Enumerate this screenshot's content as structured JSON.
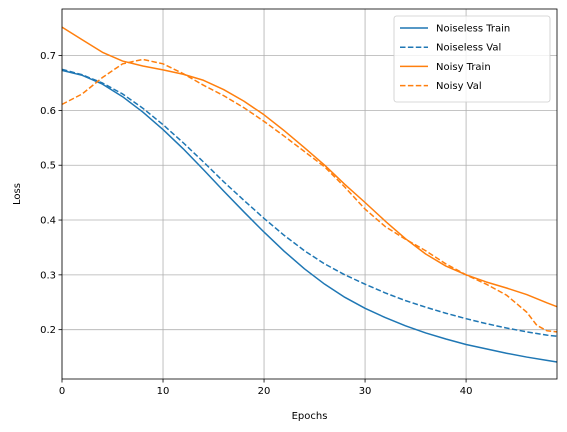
{
  "chart_data": {
    "type": "line",
    "xlabel": "Epochs",
    "ylabel": "Loss",
    "xlim": [
      0,
      49
    ],
    "ylim": [
      0.11,
      0.785
    ],
    "xticks": [
      0,
      10,
      20,
      30,
      40
    ],
    "yticks": [
      0.2,
      0.3,
      0.4,
      0.5,
      0.6,
      0.7
    ],
    "grid": true,
    "legend_position": "top-right",
    "series": [
      {
        "name": "Noiseless Train",
        "color": "#1f77b4",
        "style": "solid",
        "x": [
          0,
          2,
          4,
          6,
          8,
          10,
          12,
          14,
          16,
          18,
          20,
          22,
          24,
          26,
          28,
          30,
          32,
          34,
          36,
          38,
          40,
          42,
          44,
          46,
          48,
          49
        ],
        "y": [
          0.673,
          0.664,
          0.648,
          0.625,
          0.597,
          0.565,
          0.53,
          0.492,
          0.453,
          0.415,
          0.378,
          0.343,
          0.311,
          0.283,
          0.259,
          0.239,
          0.222,
          0.207,
          0.194,
          0.183,
          0.173,
          0.165,
          0.157,
          0.15,
          0.144,
          0.141
        ]
      },
      {
        "name": "Noiseless Val",
        "color": "#1f77b4",
        "style": "dashed",
        "x": [
          0,
          2,
          4,
          6,
          8,
          10,
          12,
          14,
          16,
          18,
          20,
          22,
          24,
          26,
          28,
          30,
          32,
          34,
          36,
          38,
          40,
          42,
          44,
          46,
          48,
          49
        ],
        "y": [
          0.675,
          0.665,
          0.65,
          0.63,
          0.604,
          0.574,
          0.541,
          0.506,
          0.47,
          0.436,
          0.403,
          0.372,
          0.344,
          0.32,
          0.3,
          0.283,
          0.267,
          0.253,
          0.241,
          0.23,
          0.22,
          0.211,
          0.203,
          0.196,
          0.19,
          0.188
        ]
      },
      {
        "name": "Noisy Train",
        "color": "#ff7f0e",
        "style": "solid",
        "x": [
          0,
          2,
          4,
          6,
          8,
          10,
          12,
          14,
          16,
          18,
          20,
          22,
          24,
          26,
          28,
          30,
          32,
          34,
          36,
          38,
          40,
          42,
          44,
          46,
          48,
          49
        ],
        "y": [
          0.752,
          0.729,
          0.706,
          0.69,
          0.681,
          0.674,
          0.666,
          0.655,
          0.638,
          0.617,
          0.592,
          0.563,
          0.532,
          0.5,
          0.465,
          0.432,
          0.398,
          0.366,
          0.338,
          0.316,
          0.3,
          0.287,
          0.276,
          0.264,
          0.249,
          0.242
        ]
      },
      {
        "name": "Noisy Val",
        "color": "#ff7f0e",
        "style": "dashed",
        "x": [
          0,
          2,
          4,
          6,
          8,
          10,
          12,
          14,
          16,
          18,
          20,
          22,
          24,
          26,
          28,
          30,
          32,
          34,
          36,
          38,
          40,
          42,
          44,
          46,
          47,
          48,
          49
        ],
        "y": [
          0.611,
          0.63,
          0.66,
          0.685,
          0.693,
          0.685,
          0.667,
          0.646,
          0.627,
          0.605,
          0.58,
          0.553,
          0.525,
          0.497,
          0.46,
          0.42,
          0.388,
          0.365,
          0.344,
          0.32,
          0.3,
          0.283,
          0.263,
          0.232,
          0.208,
          0.198,
          0.196
        ]
      }
    ]
  }
}
